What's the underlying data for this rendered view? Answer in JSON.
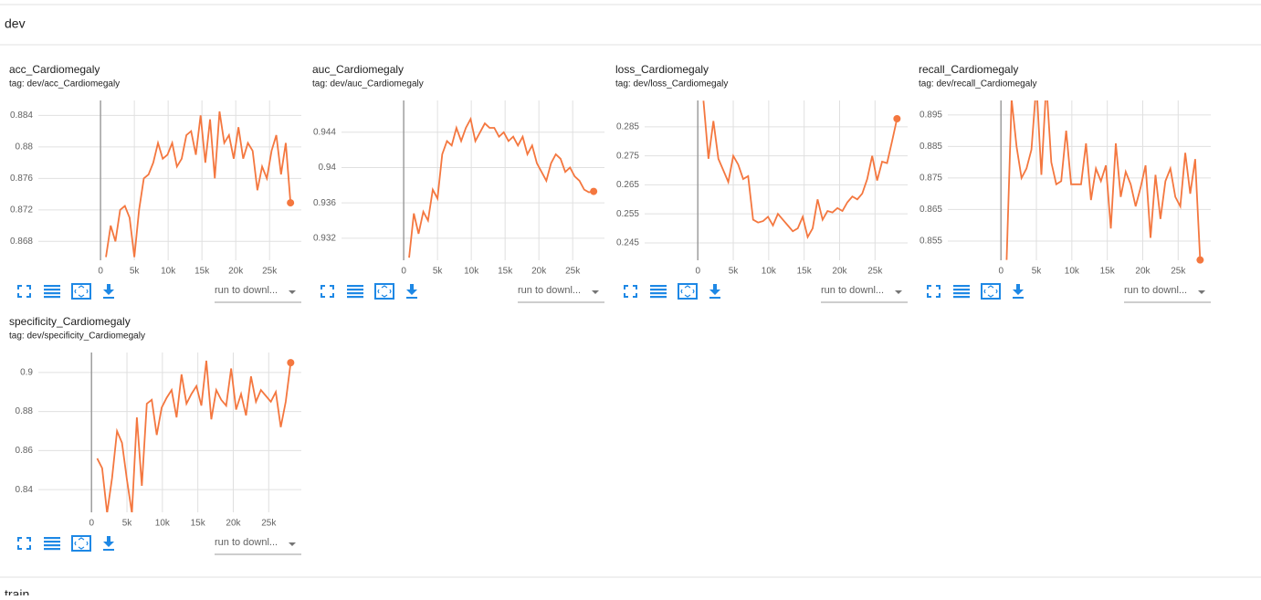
{
  "section": "dev",
  "next_section": "train",
  "run_selector": "run to downl...",
  "chart_data": [
    {
      "type": "line",
      "title": "acc_Cardiomegaly",
      "subtitle": "tag: dev/acc_Cardiomegaly",
      "x": [
        800,
        1500,
        2200,
        2900,
        3600,
        4300,
        5000,
        5700,
        6400,
        7100,
        7800,
        8500,
        9200,
        9900,
        10600,
        11300,
        12000,
        12700,
        13400,
        14100,
        14800,
        15500,
        16200,
        16900,
        17600,
        18300,
        19000,
        19700,
        20400,
        21100,
        21800,
        22500,
        23200,
        23900,
        24600,
        25300,
        26000,
        26700,
        27400,
        28100
      ],
      "series": [
        {
          "name": "dev",
          "color": "#f4773f",
          "values": [
            0.866,
            0.87,
            0.868,
            0.872,
            0.8725,
            0.871,
            0.866,
            0.872,
            0.876,
            0.8765,
            0.878,
            0.8805,
            0.8785,
            0.879,
            0.8805,
            0.8775,
            0.8785,
            0.8815,
            0.882,
            0.879,
            0.884,
            0.878,
            0.8835,
            0.876,
            0.8845,
            0.8805,
            0.8815,
            0.8785,
            0.8825,
            0.8785,
            0.8805,
            0.8795,
            0.8745,
            0.8775,
            0.876,
            0.8795,
            0.8815,
            0.8765,
            0.8805,
            0.8729
          ]
        }
      ],
      "xlim": [
        -9200,
        29700
      ],
      "ylim": [
        0.8656,
        0.8859
      ],
      "xticks": [
        0,
        {
          "value": 5000,
          "label": "5k"
        },
        {
          "value": 10000,
          "label": "10k"
        },
        {
          "value": 15000,
          "label": "15k"
        },
        {
          "value": 20000,
          "label": "20k"
        },
        {
          "value": 25000,
          "label": "25k"
        }
      ],
      "yticks": [
        0.868,
        0.872,
        0.876,
        0.88,
        0.884
      ],
      "grid": true
    },
    {
      "type": "line",
      "title": "auc_Cardiomegaly",
      "subtitle": "tag: dev/auc_Cardiomegaly",
      "x": [
        800,
        1500,
        2200,
        2900,
        3600,
        4300,
        5000,
        5700,
        6400,
        7100,
        7800,
        8500,
        9200,
        9900,
        10600,
        11300,
        12000,
        12700,
        13400,
        14100,
        14800,
        15500,
        16200,
        16900,
        17600,
        18300,
        19000,
        19700,
        20400,
        21100,
        21800,
        22500,
        23200,
        23900,
        24600,
        25300,
        26000,
        26700,
        27400,
        28100
      ],
      "series": [
        {
          "name": "dev",
          "color": "#f4773f",
          "values": [
            0.9298,
            0.9348,
            0.9325,
            0.935,
            0.934,
            0.9375,
            0.9365,
            0.9415,
            0.943,
            0.9425,
            0.9445,
            0.943,
            0.9445,
            0.9455,
            0.943,
            0.944,
            0.945,
            0.9445,
            0.9445,
            0.9435,
            0.944,
            0.943,
            0.9435,
            0.9425,
            0.9435,
            0.9415,
            0.9425,
            0.9405,
            0.9395,
            0.9385,
            0.9405,
            0.9415,
            0.941,
            0.9395,
            0.94,
            0.939,
            0.9385,
            0.9375,
            0.9372,
            0.9373
          ]
        }
      ],
      "xlim": [
        -9200,
        29700
      ],
      "ylim": [
        0.9295,
        0.9476
      ],
      "xticks": [
        0,
        {
          "value": 5000,
          "label": "5k"
        },
        {
          "value": 10000,
          "label": "10k"
        },
        {
          "value": 15000,
          "label": "15k"
        },
        {
          "value": 20000,
          "label": "20k"
        },
        {
          "value": 25000,
          "label": "25k"
        }
      ],
      "yticks": [
        0.932,
        0.936,
        0.94,
        0.944
      ],
      "grid": true
    },
    {
      "type": "line",
      "title": "loss_Cardiomegaly",
      "subtitle": "tag: dev/loss_Cardiomegaly",
      "x": [
        800,
        1500,
        2200,
        2900,
        3600,
        4300,
        5000,
        5700,
        6400,
        7100,
        7800,
        8500,
        9200,
        9900,
        10600,
        11300,
        12000,
        12700,
        13400,
        14100,
        14800,
        15500,
        16200,
        16900,
        17600,
        18300,
        19000,
        19700,
        20400,
        21100,
        21800,
        22500,
        23200,
        23900,
        24600,
        25300,
        26000,
        26700,
        27400,
        28100
      ],
      "series": [
        {
          "name": "dev",
          "color": "#f4773f",
          "values": [
            0.294,
            0.274,
            0.287,
            0.274,
            0.27,
            0.266,
            0.275,
            0.272,
            0.267,
            0.268,
            0.253,
            0.252,
            0.2525,
            0.254,
            0.251,
            0.255,
            0.253,
            0.251,
            0.249,
            0.25,
            0.254,
            0.247,
            0.25,
            0.26,
            0.253,
            0.256,
            0.2555,
            0.257,
            0.256,
            0.259,
            0.261,
            0.26,
            0.262,
            0.267,
            0.275,
            0.2665,
            0.273,
            0.2725,
            0.28,
            0.2878
          ]
        }
      ],
      "xlim": [
        -7500,
        29600
      ],
      "ylim": [
        0.239,
        0.2941
      ],
      "xticks": [
        0,
        {
          "value": 5000,
          "label": "5k"
        },
        {
          "value": 10000,
          "label": "10k"
        },
        {
          "value": 15000,
          "label": "15k"
        },
        {
          "value": 20000,
          "label": "20k"
        },
        {
          "value": 25000,
          "label": "25k"
        }
      ],
      "yticks": [
        0.245,
        0.255,
        0.265,
        0.275,
        0.285
      ],
      "grid": true
    },
    {
      "type": "line",
      "title": "recall_Cardiomegaly",
      "subtitle": "tag: dev/recall_Cardiomegaly",
      "x": [
        800,
        1500,
        2200,
        2900,
        3600,
        4300,
        5000,
        5700,
        6400,
        7100,
        7800,
        8500,
        9200,
        9900,
        10600,
        11300,
        12000,
        12700,
        13400,
        14100,
        14800,
        15500,
        16200,
        16900,
        17600,
        18300,
        19000,
        19700,
        20400,
        21100,
        21800,
        22500,
        23200,
        23900,
        24600,
        25300,
        26000,
        26700,
        27400,
        28100
      ],
      "series": [
        {
          "name": "dev",
          "color": "#f4773f",
          "values": [
            0.849,
            0.9,
            0.885,
            0.875,
            0.878,
            0.884,
            0.905,
            0.876,
            0.905,
            0.88,
            0.873,
            0.874,
            0.89,
            0.873,
            0.873,
            0.873,
            0.886,
            0.868,
            0.878,
            0.874,
            0.879,
            0.859,
            0.886,
            0.869,
            0.877,
            0.873,
            0.866,
            0.872,
            0.879,
            0.856,
            0.876,
            0.862,
            0.874,
            0.878,
            0.869,
            0.866,
            0.883,
            0.87,
            0.881,
            0.849
          ]
        }
      ],
      "xlim": [
        -7500,
        29600
      ],
      "ylim": [
        0.8489,
        0.8996
      ],
      "xticks": [
        0,
        {
          "value": 5000,
          "label": "5k"
        },
        {
          "value": 10000,
          "label": "10k"
        },
        {
          "value": 15000,
          "label": "15k"
        },
        {
          "value": 20000,
          "label": "20k"
        },
        {
          "value": 25000,
          "label": "25k"
        }
      ],
      "yticks": [
        0.855,
        0.865,
        0.875,
        0.885,
        0.895
      ],
      "grid": true
    },
    {
      "type": "line",
      "title": "specificity_Cardiomegaly",
      "subtitle": "tag: dev/specificity_Cardiomegaly",
      "x": [
        800,
        1500,
        2200,
        2900,
        3600,
        4300,
        5000,
        5700,
        6400,
        7100,
        7800,
        8500,
        9200,
        9900,
        10600,
        11300,
        12000,
        12700,
        13400,
        14100,
        14800,
        15500,
        16200,
        16900,
        17600,
        18300,
        19000,
        19700,
        20400,
        21100,
        21800,
        22500,
        23200,
        23900,
        24600,
        25300,
        26000,
        26700,
        27400,
        28100
      ],
      "series": [
        {
          "name": "dev",
          "color": "#f4773f",
          "values": [
            0.856,
            0.851,
            0.828,
            0.846,
            0.87,
            0.864,
            0.845,
            0.828,
            0.877,
            0.842,
            0.884,
            0.886,
            0.868,
            0.882,
            0.887,
            0.891,
            0.877,
            0.899,
            0.884,
            0.889,
            0.893,
            0.883,
            0.906,
            0.876,
            0.891,
            0.886,
            0.883,
            0.902,
            0.881,
            0.889,
            0.878,
            0.898,
            0.885,
            0.891,
            0.888,
            0.885,
            0.89,
            0.872,
            0.885,
            0.905
          ]
        }
      ],
      "xlim": [
        -7500,
        29600
      ],
      "ylim": [
        0.8284,
        0.9102
      ],
      "xticks": [
        0,
        {
          "value": 5000,
          "label": "5k"
        },
        {
          "value": 10000,
          "label": "10k"
        },
        {
          "value": 15000,
          "label": "15k"
        },
        {
          "value": 20000,
          "label": "20k"
        },
        {
          "value": 25000,
          "label": "25k"
        }
      ],
      "yticks": [
        0.84,
        0.86,
        0.88,
        0.9
      ],
      "grid": true
    }
  ]
}
